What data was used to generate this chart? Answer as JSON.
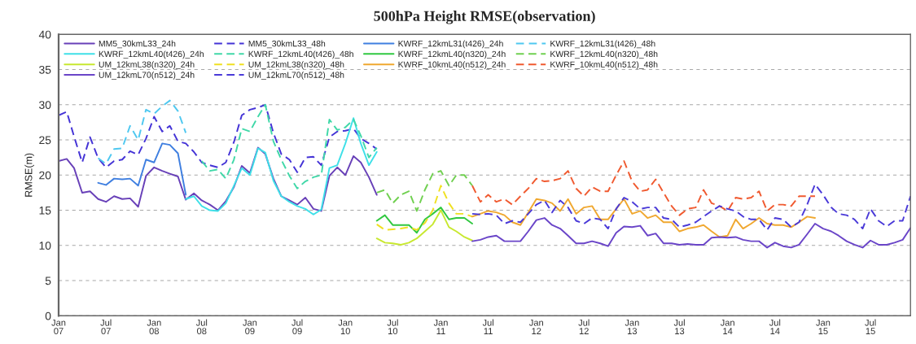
{
  "chart_data": {
    "type": "line",
    "title": "500hPa Height RMSE(observation)",
    "ylabel": "RMSE(m)",
    "x": [
      "2007-01",
      "2007-02",
      "2007-03",
      "2007-04",
      "2007-05",
      "2007-06",
      "2007-07",
      "2007-08",
      "2007-09",
      "2007-10",
      "2007-11",
      "2007-12",
      "2008-01",
      "2008-02",
      "2008-03",
      "2008-04",
      "2008-05",
      "2008-06",
      "2008-07",
      "2008-08",
      "2008-09",
      "2008-10",
      "2008-11",
      "2008-12",
      "2009-01",
      "2009-02",
      "2009-03",
      "2009-04",
      "2009-05",
      "2009-06",
      "2009-07",
      "2009-08",
      "2009-09",
      "2009-10",
      "2009-11",
      "2009-12",
      "2010-01",
      "2010-02",
      "2010-03",
      "2010-04",
      "2010-05",
      "2010-06",
      "2010-07",
      "2010-08",
      "2010-09",
      "2010-10",
      "2010-11",
      "2010-12",
      "2011-01",
      "2011-02",
      "2011-03",
      "2011-04",
      "2011-05",
      "2011-06",
      "2011-07",
      "2011-08",
      "2011-09",
      "2011-10",
      "2011-11",
      "2011-12",
      "2012-01",
      "2012-02",
      "2012-03",
      "2012-04",
      "2012-05",
      "2012-06",
      "2012-07",
      "2012-08",
      "2012-09",
      "2012-10",
      "2012-11",
      "2012-12",
      "2013-01",
      "2013-02",
      "2013-03",
      "2013-04",
      "2013-05",
      "2013-06",
      "2013-07",
      "2013-08",
      "2013-09",
      "2013-10",
      "2013-11",
      "2013-12",
      "2014-01",
      "2014-02",
      "2014-03",
      "2014-04",
      "2014-05",
      "2014-06",
      "2014-07",
      "2014-08",
      "2014-09",
      "2014-10",
      "2014-11",
      "2014-12",
      "2015-01",
      "2015-02",
      "2015-03",
      "2015-04",
      "2015-05",
      "2015-06",
      "2015-07",
      "2015-08",
      "2015-09",
      "2015-10",
      "2015-11",
      "2015-12"
    ],
    "xlim": [
      "2007-01",
      "2015-12"
    ],
    "xticks": [
      {
        "value": "2007-01",
        "label": "Jan\n07"
      },
      {
        "value": "2007-07",
        "label": "Jul\n07"
      },
      {
        "value": "2008-01",
        "label": "Jan\n08"
      },
      {
        "value": "2008-07",
        "label": "Jul\n08"
      },
      {
        "value": "2009-01",
        "label": "Jan\n09"
      },
      {
        "value": "2009-07",
        "label": "Jul\n09"
      },
      {
        "value": "2010-01",
        "label": "Jan\n10"
      },
      {
        "value": "2010-07",
        "label": "Jul\n10"
      },
      {
        "value": "2011-01",
        "label": "Jan\n11"
      },
      {
        "value": "2011-07",
        "label": "Jul\n11"
      },
      {
        "value": "2012-01",
        "label": "Jan\n12"
      },
      {
        "value": "2012-07",
        "label": "Jul\n12"
      },
      {
        "value": "2013-01",
        "label": "Jan\n13"
      },
      {
        "value": "2013-07",
        "label": "Jul\n13"
      },
      {
        "value": "2014-01",
        "label": "Jan\n14"
      },
      {
        "value": "2014-07",
        "label": "Jul\n14"
      },
      {
        "value": "2015-01",
        "label": "Jan\n15"
      },
      {
        "value": "2015-07",
        "label": "Jul\n15"
      }
    ],
    "ylim": [
      0,
      40
    ],
    "yticks": [
      0,
      5,
      10,
      15,
      20,
      25,
      30,
      35,
      40
    ],
    "grid": "y",
    "legend": "top left",
    "series": [
      {
        "name": "MM5_30kmL33_24h",
        "color": "#6840b8",
        "line_style": "solid",
        "values": [
          22.0,
          22.3,
          21.0,
          17.5,
          17.7,
          16.6,
          16.2,
          17.0,
          16.6,
          16.7,
          15.5,
          19.9,
          21.1,
          20.6,
          20.2,
          19.8,
          16.5,
          17.4,
          16.4,
          15.8,
          15.0,
          16.3,
          18.3,
          21.3,
          20.3,
          23.9,
          23.0,
          19.5,
          17.0,
          16.4,
          15.8,
          16.8,
          15.2,
          14.9,
          19.9,
          21.1,
          20.0,
          22.7,
          21.8,
          19.7,
          17.2,
          null,
          null,
          null,
          null,
          null,
          null,
          null,
          null,
          null,
          null,
          null,
          null,
          null,
          null,
          null,
          null,
          null,
          null,
          null,
          null,
          null,
          null,
          null,
          null,
          null,
          null,
          null,
          null,
          null,
          null,
          null,
          null,
          null,
          null,
          null,
          null,
          null,
          null,
          null,
          null,
          null,
          null,
          null,
          null,
          null,
          null,
          null,
          null,
          null,
          null,
          null,
          null,
          null,
          null,
          null,
          null,
          null,
          null,
          null,
          null,
          null,
          null,
          null,
          null,
          null,
          null,
          null
        ]
      },
      {
        "name": "MM5_30kmL33_48h",
        "color": "#4433d6",
        "line_style": "dashed",
        "values": [
          28.5,
          29.0,
          25.5,
          21.8,
          25.4,
          22.4,
          21.1,
          22.0,
          22.2,
          23.4,
          22.9,
          25.2,
          28.3,
          26.2,
          27.0,
          24.8,
          24.5,
          23.3,
          21.8,
          21.4,
          21.1,
          21.8,
          24.7,
          28.5,
          29.3,
          29.6,
          30.0,
          26.0,
          23.0,
          22.2,
          20.4,
          22.5,
          22.6,
          21.4,
          25.4,
          26.2,
          26.3,
          26.6,
          25.2,
          24.5,
          23.7,
          null,
          null,
          null,
          null,
          null,
          null,
          null,
          null,
          null,
          null,
          null,
          null,
          null,
          null,
          null,
          null,
          null,
          null,
          null,
          null,
          null,
          null,
          null,
          null,
          null,
          null,
          null,
          null,
          null,
          null,
          null,
          null,
          null,
          null,
          null,
          null,
          null,
          null,
          null,
          null,
          null,
          null,
          null,
          null,
          null,
          null,
          null,
          null,
          null,
          null,
          null,
          null,
          null,
          null,
          null,
          null,
          null,
          null,
          null,
          null,
          null,
          null,
          null,
          null,
          null,
          null,
          null
        ]
      },
      {
        "name": "KWRF_12kmL31(t426)_24h",
        "color": "#3f7fe0",
        "line_style": "solid",
        "values": [
          null,
          null,
          null,
          null,
          null,
          18.9,
          18.6,
          19.5,
          19.4,
          19.5,
          18.5,
          22.2,
          21.8,
          24.5,
          24.3,
          23.1,
          17.2,
          null,
          null,
          null,
          null,
          null,
          null,
          null,
          null,
          null,
          null,
          null,
          null,
          null,
          null,
          null,
          null,
          null,
          null,
          null,
          null,
          null,
          null,
          null,
          null,
          null,
          null,
          null,
          null,
          null,
          null,
          null,
          null,
          null,
          null,
          null,
          null,
          null,
          null,
          null,
          null,
          null,
          null,
          null,
          null,
          null,
          null,
          null,
          null,
          null,
          null,
          null,
          null,
          null,
          null,
          null,
          null,
          null,
          null,
          null,
          null,
          null,
          null,
          null,
          null,
          null,
          null,
          null,
          null,
          null,
          null,
          null,
          null,
          null,
          null,
          null,
          null,
          null,
          null,
          null,
          null,
          null,
          null,
          null,
          null,
          null,
          null,
          null,
          null,
          null,
          null,
          null
        ]
      },
      {
        "name": "KWRF_12kmL31(t426)_48h",
        "color": "#4fc8f0",
        "line_style": "dashed",
        "values": [
          null,
          null,
          null,
          null,
          null,
          22.4,
          21.6,
          23.7,
          23.8,
          27.0,
          25.0,
          29.3,
          28.7,
          29.8,
          30.6,
          29.1,
          26.0,
          null,
          null,
          null,
          null,
          null,
          null,
          null,
          null,
          null,
          null,
          null,
          null,
          null,
          null,
          null,
          null,
          null,
          null,
          null,
          null,
          null,
          null,
          null,
          null,
          null,
          null,
          null,
          null,
          null,
          null,
          null,
          null,
          null,
          null,
          null,
          null,
          null,
          null,
          null,
          null,
          null,
          null,
          null,
          null,
          null,
          null,
          null,
          null,
          null,
          null,
          null,
          null,
          null,
          null,
          null,
          null,
          null,
          null,
          null,
          null,
          null,
          null,
          null,
          null,
          null,
          null,
          null,
          null,
          null,
          null,
          null,
          null,
          null,
          null,
          null,
          null,
          null,
          null,
          null,
          null,
          null,
          null,
          null,
          null,
          null,
          null,
          null,
          null,
          null,
          null,
          null
        ]
      },
      {
        "name": "KWRF_12kmL40(t426)_24h",
        "color": "#3fe0e8",
        "line_style": "solid",
        "values": [
          null,
          null,
          null,
          null,
          null,
          null,
          null,
          null,
          null,
          null,
          null,
          null,
          null,
          null,
          null,
          null,
          16.6,
          17.0,
          15.6,
          15.0,
          14.9,
          16.0,
          18.5,
          21.0,
          20.0,
          23.8,
          23.2,
          19.2,
          17.0,
          16.2,
          15.6,
          15.2,
          14.4,
          15.1,
          21.0,
          21.4,
          24.5,
          28.1,
          24.5,
          21.4,
          23.3,
          null,
          null,
          null,
          null,
          null,
          null,
          null,
          null,
          null,
          null,
          null,
          null,
          null,
          null,
          null,
          null,
          null,
          null,
          null,
          null,
          null,
          null,
          null,
          null,
          null,
          null,
          null,
          null,
          null,
          null,
          null,
          null,
          null,
          null,
          null,
          null,
          null,
          null,
          null,
          null,
          null,
          null,
          null,
          null,
          null,
          null,
          null,
          null,
          null,
          null,
          null,
          null,
          null,
          null,
          null,
          null,
          null,
          null,
          null,
          null,
          null,
          null,
          null,
          null,
          null,
          null,
          null
        ]
      },
      {
        "name": "KWRF_12kmL40(t426)_48h",
        "color": "#40d8a8",
        "line_style": "dashed",
        "values": [
          null,
          null,
          null,
          null,
          null,
          null,
          null,
          null,
          null,
          null,
          null,
          null,
          null,
          null,
          null,
          null,
          null,
          null,
          22.0,
          20.6,
          20.8,
          19.5,
          22.2,
          26.6,
          26.2,
          28.3,
          30.0,
          24.8,
          22.2,
          19.9,
          18.1,
          19.1,
          19.7,
          20.0,
          27.9,
          26.4,
          26.8,
          27.9,
          25.6,
          22.5,
          23.9,
          null,
          null,
          null,
          null,
          null,
          null,
          null,
          null,
          null,
          null,
          null,
          null,
          null,
          null,
          null,
          null,
          null,
          null,
          null,
          null,
          null,
          null,
          null,
          null,
          null,
          null,
          null,
          null,
          null,
          null,
          null,
          null,
          null,
          null,
          null,
          null,
          null,
          null,
          null,
          null,
          null,
          null,
          null,
          null,
          null,
          null,
          null,
          null,
          null,
          null,
          null,
          null,
          null,
          null,
          null,
          null,
          null,
          null,
          null,
          null,
          null,
          null,
          null,
          null,
          null,
          null,
          null
        ]
      },
      {
        "name": "KWRF_12kmL40(n320)_24h",
        "color": "#30c840",
        "line_style": "solid",
        "values": [
          null,
          null,
          null,
          null,
          null,
          null,
          null,
          null,
          null,
          null,
          null,
          null,
          null,
          null,
          null,
          null,
          null,
          null,
          null,
          null,
          null,
          null,
          null,
          null,
          null,
          null,
          null,
          null,
          null,
          null,
          null,
          null,
          null,
          null,
          null,
          null,
          null,
          null,
          null,
          null,
          13.5,
          14.3,
          12.9,
          12.9,
          12.9,
          11.8,
          13.7,
          14.5,
          15.4,
          13.7,
          13.9,
          13.9,
          13.1,
          null,
          null,
          null,
          null,
          null,
          null,
          null,
          null,
          null,
          null,
          null,
          null,
          null,
          null,
          null,
          null,
          null,
          null,
          null,
          null,
          null,
          null,
          null,
          null,
          null,
          null,
          null,
          null,
          null,
          null,
          null,
          null,
          null,
          null,
          null,
          null,
          null,
          null,
          null,
          null,
          null,
          null,
          null,
          null,
          null,
          null,
          null,
          null,
          null,
          null,
          null,
          null,
          null,
          null,
          null
        ]
      },
      {
        "name": "KWRF_12kmL40(n320)_48h",
        "color": "#70d050",
        "line_style": "dashed",
        "values": [
          null,
          null,
          null,
          null,
          null,
          null,
          null,
          null,
          null,
          null,
          null,
          null,
          null,
          null,
          null,
          null,
          null,
          null,
          null,
          null,
          null,
          null,
          null,
          null,
          null,
          null,
          null,
          null,
          null,
          null,
          null,
          null,
          null,
          null,
          null,
          null,
          null,
          null,
          null,
          null,
          17.5,
          17.9,
          16.0,
          17.2,
          17.7,
          14.9,
          17.9,
          20.2,
          20.6,
          18.5,
          20.0,
          20.0,
          18.5,
          null,
          null,
          null,
          null,
          null,
          null,
          null,
          null,
          null,
          null,
          null,
          null,
          null,
          null,
          null,
          null,
          null,
          null,
          null,
          null,
          null,
          null,
          null,
          null,
          null,
          null,
          null,
          null,
          null,
          null,
          null,
          null,
          null,
          null,
          null,
          null,
          null,
          null,
          null,
          null,
          null,
          null,
          null,
          null,
          null,
          null,
          null,
          null,
          null,
          null,
          null,
          null,
          null,
          null,
          null
        ]
      },
      {
        "name": "UM_12kmL38(n320)_24h",
        "color": "#c8e830",
        "line_style": "solid",
        "values": [
          null,
          null,
          null,
          null,
          null,
          null,
          null,
          null,
          null,
          null,
          null,
          null,
          null,
          null,
          null,
          null,
          null,
          null,
          null,
          null,
          null,
          null,
          null,
          null,
          null,
          null,
          null,
          null,
          null,
          null,
          null,
          null,
          null,
          null,
          null,
          null,
          null,
          null,
          null,
          null,
          11.0,
          10.4,
          10.3,
          10.1,
          10.4,
          11.0,
          12.0,
          13.0,
          15.0,
          12.6,
          12.0,
          11.2,
          10.7,
          null,
          null,
          null,
          null,
          null,
          null,
          null,
          null,
          null,
          null,
          null,
          null,
          null,
          null,
          null,
          null,
          null,
          null,
          null,
          null,
          null,
          null,
          null,
          null,
          null,
          null,
          null,
          null,
          null,
          null,
          null,
          null,
          null,
          null,
          null,
          null,
          null,
          null,
          null,
          null,
          null,
          null,
          null,
          null,
          null,
          null,
          null,
          null,
          null,
          null,
          null,
          null,
          null,
          null,
          null
        ]
      },
      {
        "name": "UM_12kmL38(n320)_48h",
        "color": "#f0e020",
        "line_style": "dashed",
        "values": [
          null,
          null,
          null,
          null,
          null,
          null,
          null,
          null,
          null,
          null,
          null,
          null,
          null,
          null,
          null,
          null,
          null,
          null,
          null,
          null,
          null,
          null,
          null,
          null,
          null,
          null,
          null,
          null,
          null,
          null,
          null,
          null,
          null,
          null,
          null,
          null,
          null,
          null,
          null,
          null,
          13.0,
          12.2,
          12.3,
          12.4,
          12.6,
          12.2,
          13.2,
          15.0,
          18.5,
          16.0,
          14.5,
          14.5,
          14.1,
          null,
          null,
          null,
          null,
          null,
          null,
          null,
          null,
          null,
          null,
          null,
          null,
          null,
          null,
          null,
          null,
          null,
          null,
          null,
          null,
          null,
          null,
          null,
          null,
          null,
          null,
          null,
          null,
          null,
          null,
          null,
          null,
          null,
          null,
          null,
          null,
          null,
          null,
          null,
          null,
          null,
          null,
          null,
          null,
          null,
          null,
          null,
          null,
          null,
          null,
          null,
          null,
          null,
          null,
          null
        ]
      },
      {
        "name": "KWRF_10kmL40(n512)_24h",
        "color": "#f0a830",
        "line_style": "solid",
        "values": [
          null,
          null,
          null,
          null,
          null,
          null,
          null,
          null,
          null,
          null,
          null,
          null,
          null,
          null,
          null,
          null,
          null,
          null,
          null,
          null,
          null,
          null,
          null,
          null,
          null,
          null,
          null,
          null,
          null,
          null,
          null,
          null,
          null,
          null,
          null,
          null,
          null,
          null,
          null,
          null,
          null,
          null,
          null,
          null,
          null,
          null,
          null,
          null,
          null,
          null,
          null,
          null,
          14.1,
          14.5,
          14.9,
          14.7,
          14.3,
          13.3,
          12.9,
          14.7,
          16.6,
          16.4,
          16.0,
          14.9,
          16.6,
          14.5,
          15.4,
          15.6,
          13.7,
          13.7,
          15.2,
          16.6,
          14.5,
          14.9,
          13.9,
          14.3,
          13.3,
          13.3,
          12.0,
          12.4,
          12.6,
          12.9,
          12.0,
          11.2,
          11.4,
          13.7,
          12.4,
          13.1,
          13.9,
          13.1,
          12.9,
          12.9,
          12.6,
          13.3,
          14.1,
          13.9,
          null,
          null,
          null,
          null,
          null,
          null,
          null,
          null,
          null,
          null,
          null,
          null
        ]
      },
      {
        "name": "KWRF_10kmL40(n512)_48h",
        "color": "#f05a30",
        "line_style": "dashed",
        "values": [
          null,
          null,
          null,
          null,
          null,
          null,
          null,
          null,
          null,
          null,
          null,
          null,
          null,
          null,
          null,
          null,
          null,
          null,
          null,
          null,
          null,
          null,
          null,
          null,
          null,
          null,
          null,
          null,
          null,
          null,
          null,
          null,
          null,
          null,
          null,
          null,
          null,
          null,
          null,
          null,
          null,
          null,
          null,
          null,
          null,
          null,
          null,
          null,
          null,
          null,
          null,
          null,
          18.5,
          16.2,
          17.2,
          16.2,
          16.6,
          15.8,
          17.0,
          18.1,
          19.5,
          19.1,
          19.2,
          19.5,
          20.6,
          18.1,
          17.0,
          18.3,
          17.7,
          17.7,
          20.0,
          22.0,
          19.1,
          17.7,
          17.9,
          19.4,
          17.5,
          15.6,
          14.3,
          15.2,
          15.4,
          17.9,
          16.0,
          15.6,
          14.9,
          16.8,
          16.6,
          16.8,
          17.7,
          14.9,
          15.8,
          15.8,
          15.6,
          17.0,
          17.0,
          17.0,
          null,
          null,
          null,
          null,
          null,
          null,
          null,
          null,
          null,
          null,
          null,
          null
        ]
      },
      {
        "name": "UM_12kmL70(n512)_24h",
        "color": "#6a45c8",
        "line_style": "solid",
        "values": [
          null,
          null,
          null,
          null,
          null,
          null,
          null,
          null,
          null,
          null,
          null,
          null,
          null,
          null,
          null,
          null,
          null,
          null,
          null,
          null,
          null,
          null,
          null,
          null,
          null,
          null,
          null,
          null,
          null,
          null,
          null,
          null,
          null,
          null,
          null,
          null,
          null,
          null,
          null,
          null,
          null,
          null,
          null,
          null,
          null,
          null,
          null,
          null,
          null,
          null,
          null,
          null,
          10.6,
          10.8,
          11.2,
          11.4,
          10.6,
          10.6,
          10.6,
          12.0,
          13.6,
          13.9,
          12.9,
          12.4,
          11.4,
          10.3,
          10.3,
          10.6,
          10.3,
          9.9,
          11.8,
          12.7,
          12.6,
          12.8,
          11.4,
          11.7,
          10.3,
          10.3,
          10.1,
          10.2,
          10.1,
          10.1,
          11.1,
          11.2,
          11.1,
          11.2,
          10.8,
          10.6,
          10.6,
          9.7,
          10.4,
          9.9,
          9.7,
          10.1,
          11.6,
          13.1,
          12.4,
          12.0,
          11.4,
          10.6,
          10.1,
          9.7,
          10.7,
          10.1,
          10.1,
          10.4,
          10.8,
          12.5
        ]
      },
      {
        "name": "UM_12kmL70(n512)_48h",
        "color": "#4a3ad8",
        "line_style": "dashed",
        "values": [
          null,
          null,
          null,
          null,
          null,
          null,
          null,
          null,
          null,
          null,
          null,
          null,
          null,
          null,
          null,
          null,
          null,
          null,
          null,
          null,
          null,
          null,
          null,
          null,
          null,
          null,
          null,
          null,
          null,
          null,
          null,
          null,
          null,
          null,
          null,
          null,
          null,
          null,
          null,
          null,
          null,
          null,
          null,
          null,
          null,
          null,
          null,
          null,
          null,
          null,
          null,
          null,
          14.5,
          14.4,
          14.5,
          14.3,
          13.1,
          13.5,
          13.3,
          14.5,
          15.8,
          16.4,
          14.7,
          16.4,
          15.4,
          13.5,
          13.1,
          13.9,
          13.7,
          12.4,
          15.2,
          16.8,
          16.2,
          15.2,
          15.4,
          15.4,
          13.9,
          13.7,
          12.6,
          12.9,
          13.3,
          14.1,
          14.9,
          15.6,
          15.2,
          14.9,
          14.1,
          13.7,
          13.7,
          12.2,
          13.9,
          13.7,
          12.6,
          13.3,
          15.8,
          18.7,
          17.2,
          15.4,
          14.5,
          14.3,
          13.7,
          12.4,
          15.2,
          13.5,
          12.7,
          13.5,
          13.5,
          17.0
        ]
      }
    ]
  }
}
